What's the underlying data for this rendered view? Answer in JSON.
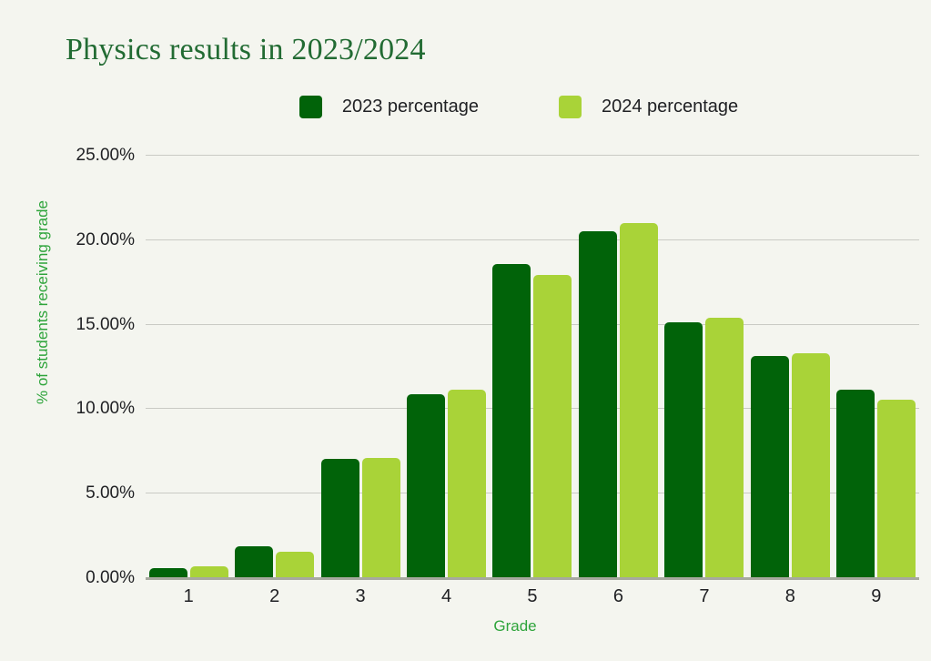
{
  "title": "Physics results in 2023/2024",
  "chart_data": {
    "type": "bar",
    "title": "Physics results in 2023/2024",
    "categories": [
      "1",
      "2",
      "3",
      "4",
      "5",
      "6",
      "7",
      "8",
      "9"
    ],
    "series": [
      {
        "name": "2023 percentage",
        "color": "#016309",
        "values": [
          0.55,
          1.85,
          7.0,
          10.85,
          18.55,
          20.5,
          15.1,
          13.1,
          11.1
        ]
      },
      {
        "name": "2024 percentage",
        "color": "#a9d338",
        "values": [
          0.65,
          1.5,
          7.05,
          11.1,
          17.95,
          21.0,
          15.4,
          13.3,
          10.55
        ]
      }
    ],
    "xlabel": "Grade",
    "ylabel": "% of students receiving grade",
    "ylim": [
      0,
      25
    ],
    "ytick_step": 5,
    "ytick_labels": [
      "0.00%",
      "5.00%",
      "10.00%",
      "15.00%",
      "20.00%",
      "25.00%"
    ],
    "grid": true,
    "legend_position": "top-center"
  },
  "colors": {
    "background": "#f4f5ef",
    "title": "#226b33",
    "axis_label": "#2ea43b",
    "tick": "#202124",
    "gridline": "#c9cac4",
    "baseline": "#a7a99f"
  }
}
